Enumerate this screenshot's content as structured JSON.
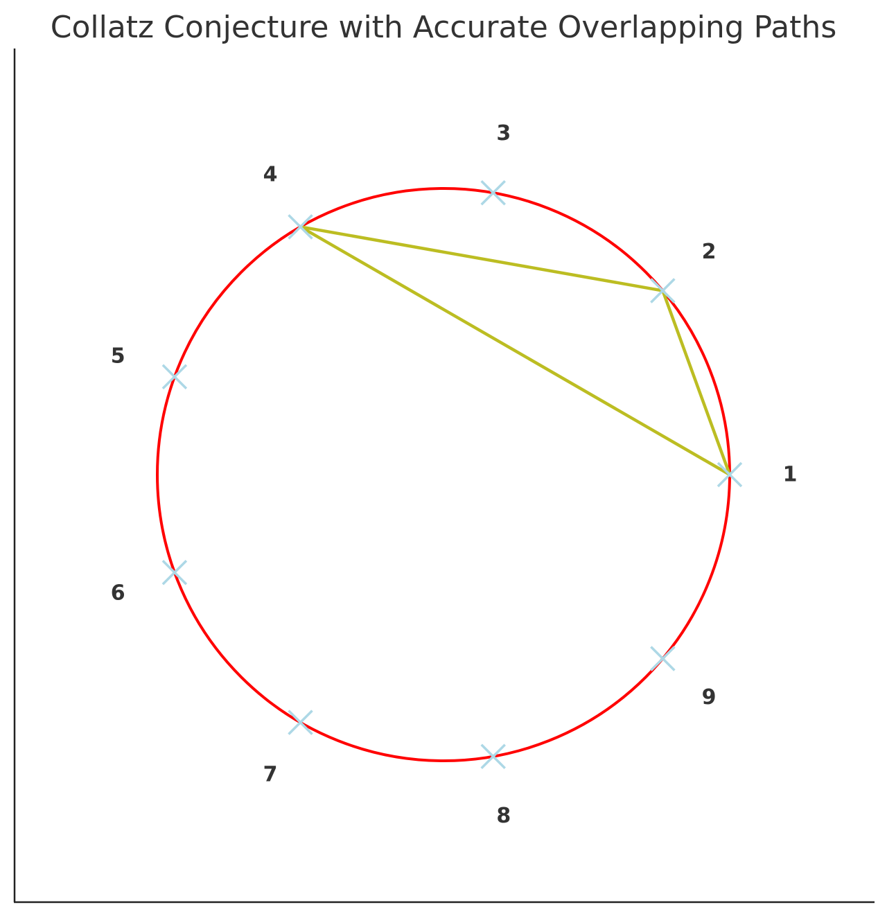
{
  "chart_data": {
    "type": "scatter",
    "title": "Collatz Conjecture with Accurate Overlapping Paths",
    "xlabel": "",
    "ylabel": "",
    "grid": false,
    "legend": "none",
    "nodes": [
      {
        "label": "1",
        "angle_deg": 0
      },
      {
        "label": "2",
        "angle_deg": 40
      },
      {
        "label": "3",
        "angle_deg": 80
      },
      {
        "label": "4",
        "angle_deg": 120
      },
      {
        "label": "5",
        "angle_deg": 160
      },
      {
        "label": "6",
        "angle_deg": 200
      },
      {
        "label": "7",
        "angle_deg": 240
      },
      {
        "label": "8",
        "angle_deg": 280
      },
      {
        "label": "9",
        "angle_deg": 320
      }
    ],
    "circle": {
      "radius": 1,
      "color": "#ff0000"
    },
    "paths": [
      {
        "from": "2",
        "to": "1"
      },
      {
        "from": "4",
        "to": "2"
      },
      {
        "from": "1",
        "to": "4"
      }
    ],
    "path_color": "#bcbd22",
    "marker": {
      "shape": "x",
      "color": "#add8e6"
    },
    "axis_color": "#222222"
  }
}
